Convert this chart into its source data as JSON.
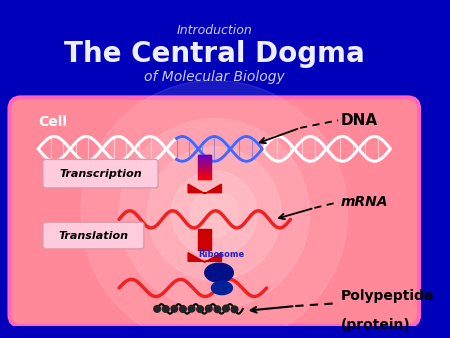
{
  "bg_color": "#0000BB",
  "title_intro": "Introduction",
  "title_main": "The Central Dogma",
  "title_sub": "of Molecular Biology",
  "title_intro_color": "#CCCCEE",
  "title_main_color": "#EEEEFF",
  "title_sub_color": "#CCCCEE",
  "cell_edge_color": "#FF66BB",
  "cell_face_color": "#FF8899",
  "cell_label": "Cell",
  "cell_label_color": "#FFFFFF",
  "dna_label": "DNA",
  "mrna_label": "mRNA",
  "polypeptide_label1": "Polypeptide",
  "polypeptide_label2": "(protein)",
  "ribosome_label": "Ribosome",
  "transcription_label": "Transcription",
  "translation_label": "Translation",
  "white_strand_color": "#FFFFFF",
  "blue_strand_color": "#4466FF",
  "mrna_color": "#EE2222",
  "poly_color": "#EE2222",
  "arrow_shaft_top": "#8888FF",
  "arrow_shaft_bot": "#CC0000",
  "trans_arrow_color": "#CC0000",
  "ribosome_color": "#000088",
  "label_box_face": "#FFCCDD",
  "label_box_edge": "#DD99AA"
}
